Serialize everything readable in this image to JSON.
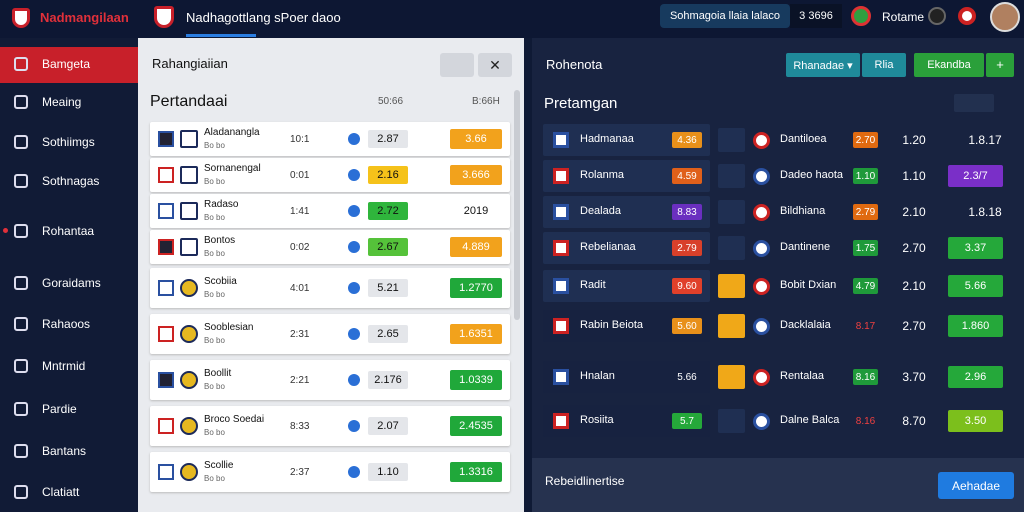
{
  "header": {
    "brand": "Nadmangilaan",
    "tab": "Nadhagottlang sPoer daoo",
    "balance_label": "Sohmagoia llaia lalaco",
    "balance": "3 3696",
    "user": "Rotame"
  },
  "sidebar": {
    "items": [
      "Bamgeta",
      "Meaing",
      "Sothiimgs",
      "Sothnagas",
      "Rohantaa",
      "Goraidams",
      "Rahaoos",
      "Mntrmid",
      "Pardie",
      "Bantans",
      "Clatiatt"
    ]
  },
  "left_panel": {
    "title": "Rahangiaiian",
    "section": "Pertandaai",
    "columns": [
      "50:66",
      "B:66H"
    ],
    "matches": [
      {
        "team": "Aladanangla",
        "sub": "Bo bo",
        "time": "10:1",
        "pick": "2.87",
        "pick_color": "#e4e6ea",
        "price": "3.66",
        "price_color": "#f2a21c"
      },
      {
        "team": "Sornanengal",
        "sub": "Bo bo",
        "time": "0:01",
        "pick": "2.16",
        "pick_color": "#f5c21a",
        "price": "3.666",
        "price_color": "#f2a21c"
      },
      {
        "team": "Radaso",
        "sub": "Bo bo",
        "time": "1:41",
        "pick": "2.72",
        "pick_color": "#2fb53c",
        "price": "2019",
        "price_color": "#ffffff"
      },
      {
        "team": "Bontos",
        "sub": "Bo bo",
        "time": "0:02",
        "pick": "2.67",
        "pick_color": "#55c23a",
        "price": "4.889",
        "price_color": "#f2a21c"
      },
      {
        "team": "Scobiia",
        "sub": "Bo bo",
        "time": "4:01",
        "pick": "5.21",
        "pick_color": "#e4e6ea",
        "price": "1.2770",
        "price_color": "#20a83a"
      },
      {
        "team": "Sooblesian",
        "sub": "Bo bo",
        "time": "2:31",
        "pick": "2.65",
        "pick_color": "#e4e6ea",
        "price": "1.6351",
        "price_color": "#f2a21c"
      },
      {
        "team": "Boollit",
        "sub": "Bo bo",
        "time": "2:21",
        "pick": "2.176",
        "pick_color": "#e4e6ea",
        "price": "1.0339",
        "price_color": "#20a83a"
      },
      {
        "team": "Broco Soedai",
        "sub": "Bo bo",
        "time": "8:33",
        "pick": "2.07",
        "pick_color": "#e4e6ea",
        "price": "2.4535",
        "price_color": "#20a83a"
      },
      {
        "team": "Scollie",
        "sub": "Bo bo",
        "time": "2:37",
        "pick": "1.10",
        "pick_color": "#e4e6ea",
        "price": "1.3316",
        "price_color": "#20a83a"
      }
    ]
  },
  "right_panel": {
    "title": "Rohenota",
    "buttons": [
      "Rhanadae ▾",
      "Rlia",
      "Ekandba"
    ],
    "section": "Pretamgan",
    "rows": [
      {
        "home": "Hadmanaa",
        "home_odds": "4.36",
        "home_color": "#e8901a",
        "away": "Dantiloea",
        "score": "2.70",
        "score_color": "#e06a10",
        "line": "1.20",
        "total": "1.8.17",
        "total_color": ""
      },
      {
        "home": "Rolanma",
        "home_odds": "4.59",
        "home_color": "#e0601a",
        "away": "Dadeo haota",
        "score": "1.10",
        "score_color": "#1f9a3a",
        "line": "1.10",
        "total": "2.3/7",
        "total_color": "#7a2fc8"
      },
      {
        "home": "Dealada",
        "home_odds": "8.83",
        "home_color": "#6a2fc0",
        "away": "Bildhiana",
        "score": "2.79",
        "score_color": "#e06a10",
        "line": "2.10",
        "total": "1.8.18",
        "total_color": ""
      },
      {
        "home": "Rebelianaa",
        "home_odds": "2.79",
        "home_color": "#d8402a",
        "away": "Dantinene",
        "score": "1.75",
        "score_color": "#1f9a3a",
        "line": "2.70",
        "total": "3.37",
        "total_color": "#25a83a"
      },
      {
        "home": "Radit",
        "home_odds": "9.60",
        "home_color": "#e0402a",
        "away": "Bobit Dxian",
        "score": "4.79",
        "score_color": "#1f9a3a",
        "line": "2.10",
        "total": "5.66",
        "total_color": "#25a83a"
      },
      {
        "home": "Rabin Beiota",
        "home_odds": "5.60",
        "home_color": "#e8901a",
        "away": "Dacklalaia",
        "score": "8.17",
        "score_color": "",
        "line": "2.70",
        "total": "1.860",
        "total_color": "#25a83a"
      },
      {
        "home": "Hnalan",
        "home_odds": "5.66",
        "home_color": "",
        "away": "Rentalaa",
        "score": "8.16",
        "score_color": "#1f9a3a",
        "line": "3.70",
        "total": "2.96",
        "total_color": "#25a83a"
      },
      {
        "home": "Rosiita",
        "home_odds": "5.7",
        "home_color": "#25a83a",
        "away": "Dalne Balca",
        "score": "8.16",
        "score_color": "",
        "line": "8.70",
        "total": "3.50",
        "total_color": "#7cbf1c"
      }
    ],
    "footer": "Rebeidlinertise",
    "action": "Aehadae"
  }
}
